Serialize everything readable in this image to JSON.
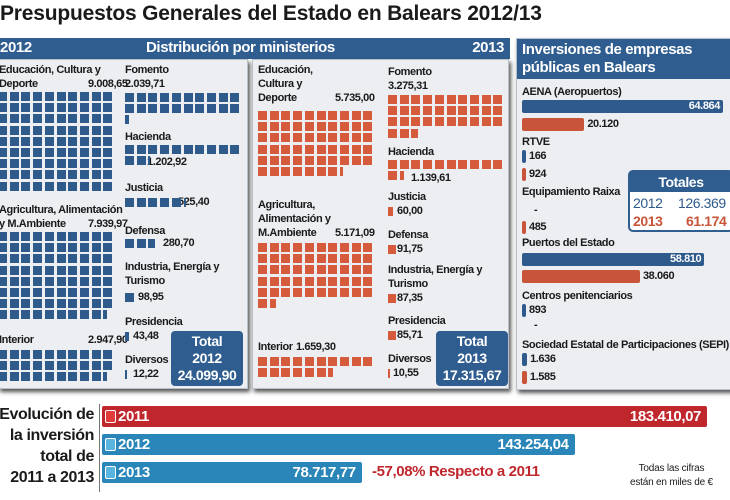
{
  "title": "Presupuestos Generales del Estado en Balears 2012/13",
  "header": {
    "year_left": "2012",
    "center": "Distribución por ministerios",
    "year_right": "2013"
  },
  "colors": {
    "blue": "#2e5a8c",
    "orange": "#d65a3c",
    "red": "#c0272d",
    "teal": "#2a86b8"
  },
  "chart_data": [
    {
      "type": "waffle",
      "title": "Distribución por ministerios 2012",
      "unit_per_square": 100,
      "items": [
        {
          "label": "Educación, Cultura y Deporte",
          "l1": "Educación, Cultura y",
          "l2": "Deporte",
          "display": "9.008,65",
          "value": 9008.65
        },
        {
          "label": "Agricultura, Alimentación y M.Ambiente",
          "l1": "Agricultura, Alimentación",
          "l2": "y M.Ambiente",
          "display": "7.939,97",
          "value": 7939.97
        },
        {
          "label": "Interior",
          "l1": "Interior",
          "display": "2.947,90",
          "value": 2947.9
        },
        {
          "label": "Fomento",
          "l1": "Fomento",
          "display": "2.039,71",
          "value": 2039.71
        },
        {
          "label": "Hacienda",
          "l1": "Hacienda",
          "display": "1.202,92",
          "value": 1202.92
        },
        {
          "label": "Justicia",
          "l1": "Justicia",
          "display": "525,40",
          "value": 525.4
        },
        {
          "label": "Defensa",
          "l1": "Defensa",
          "display": "280,70",
          "value": 280.7
        },
        {
          "label": "Industria, Energía y Turismo",
          "l1": "Industria, Energía y",
          "l2": "Turismo",
          "display": "98,95",
          "value": 98.95
        },
        {
          "label": "Presidencia",
          "l1": "Presidencia",
          "display": "43,48",
          "value": 43.48
        },
        {
          "label": "Diversos",
          "l1": "Diversos",
          "display": "12,22",
          "value": 12.22
        }
      ],
      "total": {
        "l1": "Total",
        "l2": "2012",
        "display": "24.099,90",
        "value": 24099.9
      }
    },
    {
      "type": "waffle",
      "title": "Distribución por ministerios 2013",
      "unit_per_square": 100,
      "items": [
        {
          "label": "Educación, Cultura y Deporte",
          "l1": "Educación,",
          "l2": "Cultura y",
          "l3": "Deporte",
          "display": "5.735,00",
          "value": 5735.0
        },
        {
          "label": "Agricultura, Alimentación y M.Ambiente",
          "l1": "Agricultura,",
          "l2": "Alimentación y",
          "l3": "M.Ambiente",
          "display": "5.171,09",
          "value": 5171.09
        },
        {
          "label": "Interior",
          "l1": "Interior",
          "display": "1.659,30",
          "value": 1659.3
        },
        {
          "label": "Fomento",
          "l1": "Fomento",
          "display": "3.275,31",
          "value": 3275.31
        },
        {
          "label": "Hacienda",
          "l1": "Hacienda",
          "display": "1.139,61",
          "value": 1139.61
        },
        {
          "label": "Justicia",
          "l1": "Justicia",
          "display": "60,00",
          "value": 60.0
        },
        {
          "label": "Defensa",
          "l1": "Defensa",
          "display": "91,75",
          "value": 91.75
        },
        {
          "label": "Industria, Energía y Turismo",
          "l1": "Industria, Energía y",
          "l2": "Turismo",
          "display": "87,35",
          "value": 87.35
        },
        {
          "label": "Presidencia",
          "l1": "Presidencia",
          "display": "85,71",
          "value": 85.71
        },
        {
          "label": "Diversos",
          "l1": "Diversos",
          "display": "10,55",
          "value": 10.55
        }
      ],
      "total": {
        "l1": "Total",
        "l2": "2013",
        "display": "17.315,67",
        "value": 17315.67
      }
    },
    {
      "type": "bar",
      "title": "Inversiones de empresas públicas en Balears",
      "title_l1": "Inversiones de empresas",
      "title_l2": "públicas en Balears",
      "series_names": [
        "2012",
        "2013"
      ],
      "items": [
        {
          "label": "AENA (Aeropuertos)",
          "v2012": 64864,
          "d2012": "64.864",
          "v2013": 20120,
          "d2013": "20.120"
        },
        {
          "label": "RTVE",
          "v2012": 166,
          "d2012": "166",
          "v2013": 924,
          "d2013": "924"
        },
        {
          "label": "Equipamiento Raixa",
          "v2012": null,
          "d2012": "-",
          "v2013": 485,
          "d2013": "485"
        },
        {
          "label": "Puertos del Estado",
          "v2012": 58810,
          "d2012": "58.810",
          "v2013": 38060,
          "d2013": "38.060"
        },
        {
          "label": "Centros penitenciarios",
          "v2012": 893,
          "d2012": "893",
          "v2013": null,
          "d2013": "-"
        },
        {
          "label": "Sociedad Estatal de Participaciones (SEPI)",
          "v2012": 1636,
          "d2012": "1.636",
          "v2013": 1585,
          "d2013": "1.585"
        }
      ],
      "totals": {
        "title": "Totales",
        "y2012": "2012",
        "t2012": "126.369",
        "y2013": "2013",
        "t2013": "61.174"
      }
    },
    {
      "type": "bar",
      "title": "Evolución de la inversión total de 2011 a 2013",
      "title_lines": [
        "Evolución de",
        "la inversión",
        "total de",
        "2011 a 2013"
      ],
      "categories": [
        "2011",
        "2012",
        "2013"
      ],
      "values": [
        183410.07,
        143254.04,
        78717.77
      ],
      "displays": [
        "183.410,07",
        "143.254,04",
        "78.717,77"
      ],
      "annotation": "-57,08% Respecto a 2011"
    }
  ],
  "footnote": {
    "l1": "Todas las cifras",
    "l2": "están en miles de €"
  }
}
